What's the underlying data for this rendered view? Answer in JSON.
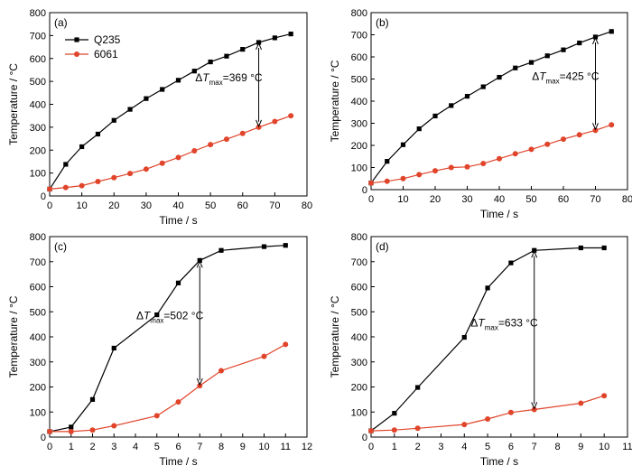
{
  "legend": {
    "items": [
      "Q235",
      "6061"
    ]
  },
  "colors": {
    "Q235": "#000000",
    "6061": "#e0442a"
  },
  "chart_data": [
    {
      "type": "line",
      "panel_label": "(a)",
      "xlabel": "Time / s",
      "ylabel": "Temperature / °C",
      "xlim": [
        0,
        80
      ],
      "ylim": [
        0,
        800
      ],
      "xticks": [
        0,
        10,
        20,
        30,
        40,
        50,
        60,
        70,
        80
      ],
      "yticks": [
        0,
        100,
        200,
        300,
        400,
        500,
        600,
        700,
        800
      ],
      "annotation": {
        "delta": "Δ",
        "symbol": "T",
        "subscript": "max",
        "text": "=369 °C",
        "x": 65,
        "y_top": 670,
        "y_bottom": 300
      },
      "series": [
        {
          "name": "Q235",
          "marker": "square",
          "x": [
            0,
            5,
            10,
            15,
            20,
            25,
            30,
            35,
            40,
            45,
            50,
            55,
            60,
            65,
            70,
            75
          ],
          "y": [
            30,
            138,
            215,
            270,
            330,
            378,
            425,
            465,
            505,
            545,
            585,
            610,
            640,
            670,
            690,
            707
          ]
        },
        {
          "name": "6061",
          "marker": "circle",
          "x": [
            0,
            5,
            10,
            15,
            20,
            25,
            30,
            35,
            40,
            45,
            50,
            55,
            60,
            65,
            70,
            75
          ],
          "y": [
            30,
            37,
            45,
            63,
            80,
            98,
            117,
            143,
            168,
            197,
            224,
            248,
            273,
            300,
            325,
            350
          ]
        }
      ]
    },
    {
      "type": "line",
      "panel_label": "(b)",
      "xlabel": "Time / s",
      "ylabel": "Temperature / °C",
      "xlim": [
        0,
        80
      ],
      "ylim": [
        0,
        800
      ],
      "xticks": [
        0,
        10,
        20,
        30,
        40,
        50,
        60,
        70,
        80
      ],
      "yticks": [
        0,
        100,
        200,
        300,
        400,
        500,
        600,
        700,
        800
      ],
      "annotation": {
        "delta": "Δ",
        "symbol": "T",
        "subscript": "max",
        "text": "=425 °C",
        "x": 70,
        "y_top": 690,
        "y_bottom": 268
      },
      "series": [
        {
          "name": "",
          "marker": "square",
          "x": [
            0,
            5,
            10,
            15,
            20,
            25,
            30,
            35,
            40,
            45,
            50,
            55,
            60,
            65,
            70,
            75
          ],
          "y": [
            30,
            128,
            203,
            275,
            333,
            380,
            422,
            465,
            508,
            550,
            575,
            605,
            632,
            663,
            690,
            715
          ]
        },
        {
          "name": "",
          "marker": "circle",
          "x": [
            0,
            5,
            10,
            15,
            20,
            25,
            30,
            35,
            40,
            45,
            50,
            55,
            60,
            65,
            70,
            75
          ],
          "y": [
            30,
            38,
            50,
            68,
            85,
            100,
            103,
            118,
            140,
            162,
            182,
            205,
            228,
            248,
            268,
            293
          ]
        }
      ]
    },
    {
      "type": "line",
      "panel_label": "(c)",
      "xlabel": "Time / s",
      "ylabel": "Temperature / °C",
      "xlim": [
        0,
        12
      ],
      "ylim": [
        0,
        800
      ],
      "xticks": [
        0,
        1,
        2,
        3,
        4,
        5,
        6,
        7,
        8,
        9,
        10,
        11,
        12
      ],
      "yticks": [
        0,
        100,
        200,
        300,
        400,
        500,
        600,
        700,
        800
      ],
      "annotation": {
        "delta": "Δ",
        "symbol": "T",
        "subscript": "max",
        "text": "=502 °C",
        "x": 7,
        "y_top": 705,
        "y_bottom": 205
      },
      "series": [
        {
          "name": "",
          "marker": "square",
          "x": [
            0,
            1,
            2,
            3,
            5,
            6,
            7,
            8,
            10,
            11
          ],
          "y": [
            22,
            40,
            150,
            355,
            488,
            615,
            705,
            745,
            760,
            765
          ]
        },
        {
          "name": "",
          "marker": "circle",
          "x": [
            0,
            1,
            2,
            3,
            5,
            6,
            7,
            8,
            10,
            11
          ],
          "y": [
            22,
            22,
            28,
            45,
            85,
            140,
            205,
            265,
            322,
            370
          ]
        }
      ]
    },
    {
      "type": "line",
      "panel_label": "(d)",
      "xlabel": "Time / s",
      "ylabel": "Temperature / °C",
      "xlim": [
        0,
        11
      ],
      "ylim": [
        0,
        800
      ],
      "xticks": [
        0,
        1,
        2,
        3,
        4,
        5,
        6,
        7,
        8,
        9,
        10,
        11
      ],
      "yticks": [
        0,
        100,
        200,
        300,
        400,
        500,
        600,
        700,
        800
      ],
      "annotation": {
        "delta": "Δ",
        "symbol": "T",
        "subscript": "max",
        "text": "=633 °C",
        "x": 7,
        "y_top": 745,
        "y_bottom": 110
      },
      "series": [
        {
          "name": "",
          "marker": "square",
          "x": [
            0,
            1,
            2,
            4,
            5,
            6,
            7,
            9,
            10
          ],
          "y": [
            25,
            95,
            198,
            398,
            595,
            695,
            745,
            755,
            755
          ]
        },
        {
          "name": "",
          "marker": "circle",
          "x": [
            0,
            1,
            2,
            4,
            5,
            6,
            7,
            9,
            10
          ],
          "y": [
            25,
            28,
            35,
            50,
            72,
            98,
            110,
            135,
            165
          ]
        }
      ]
    }
  ]
}
